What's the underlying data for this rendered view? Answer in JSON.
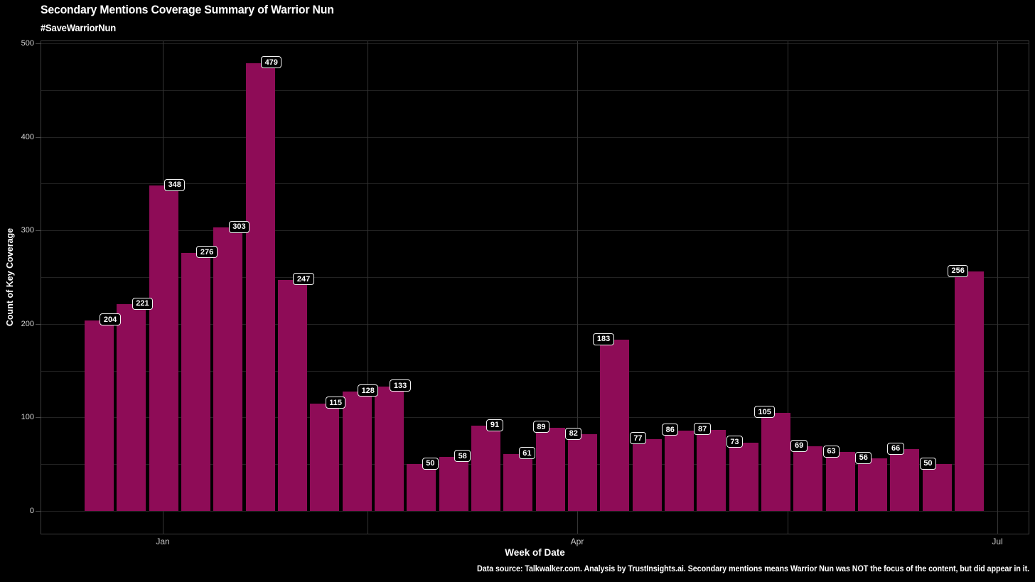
{
  "chart_data": {
    "type": "bar",
    "title": "Secondary Mentions Coverage Summary of Warrior Nun",
    "subtitle": "#SaveWarriorNun",
    "xlabel": "Week of Date",
    "ylabel": "Count of Key Coverage",
    "ylim": [
      0,
      500
    ],
    "y_tick_labels": [
      "0",
      "100",
      "200",
      "300",
      "400",
      "500"
    ],
    "gridline_interval": 50,
    "x_tick_labels": [
      "Jan",
      "Apr",
      "Jul"
    ],
    "x_unit": "week",
    "values": [
      204,
      221,
      348,
      276,
      303,
      479,
      247,
      115,
      128,
      133,
      50,
      58,
      91,
      61,
      89,
      82,
      183,
      77,
      86,
      87,
      73,
      105,
      69,
      63,
      56,
      66,
      50,
      256
    ],
    "value_labels_visible": true,
    "legend": "none",
    "grid": true,
    "colors": {
      "background": "#000000",
      "bar": "#8E0C57",
      "title_text": "#ffffff",
      "tick_text": "#d4d4d4",
      "gridline": "#222222",
      "label_box_bg": "#000000",
      "label_box_border": "#f2f2f2",
      "label_text": "#ffffff"
    },
    "footer": "Data source: Talkwalker.com. Analysis by TrustInsights.ai. Secondary mentions means Warrior Nun was NOT the focus of the content, but did appear in it."
  }
}
